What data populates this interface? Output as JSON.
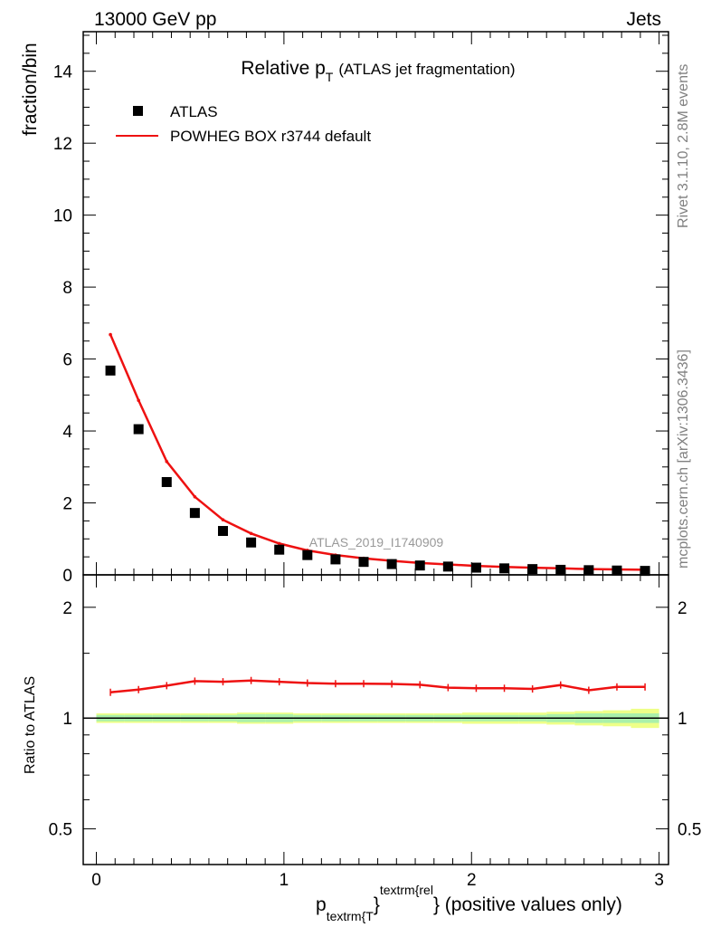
{
  "header": {
    "left": "13000 GeV pp",
    "right": "Jets"
  },
  "side_labels": {
    "rivet": "Rivet 3.1.10,  2.8M events",
    "mcplots": "mcplots.cern.ch [arXiv:1306.3436]"
  },
  "watermark": "ATLAS_2019_I1740909",
  "chart_data": [
    {
      "type": "scatter",
      "title": {
        "main": "Relative p",
        "main_sub": "T",
        "detail": "(ATLAS jet fragmentation)"
      },
      "ylabel": "fraction/bin",
      "xlim": [
        -0.07,
        3.05
      ],
      "ylim": [
        0,
        15.1
      ],
      "yticks": [
        0,
        2,
        4,
        6,
        8,
        10,
        12,
        14
      ],
      "yticklabels": [
        "0",
        "2",
        "4",
        "6",
        "8",
        "10",
        "12",
        "14"
      ],
      "legend": {
        "position": "top-left",
        "entries": [
          {
            "label": "ATLAS",
            "marker": "square",
            "color": "#000000"
          },
          {
            "label": "POWHEG BOX r3744 default",
            "marker": "line",
            "color": "#ee1111"
          }
        ]
      },
      "x": [
        0.075,
        0.225,
        0.375,
        0.525,
        0.675,
        0.825,
        0.975,
        1.125,
        1.275,
        1.425,
        1.575,
        1.725,
        1.875,
        2.025,
        2.175,
        2.325,
        2.475,
        2.625,
        2.775,
        2.925
      ],
      "series": [
        {
          "name": "ATLAS",
          "values": [
            5.68,
            4.05,
            2.58,
            1.72,
            1.22,
            0.9,
            0.7,
            0.55,
            0.43,
            0.36,
            0.3,
            0.26,
            0.23,
            0.2,
            0.18,
            0.16,
            0.14,
            0.13,
            0.12,
            0.11
          ]
        },
        {
          "name": "POWHEG BOX r3744 default",
          "values": [
            6.68,
            4.85,
            3.15,
            2.17,
            1.53,
            1.15,
            0.87,
            0.68,
            0.55,
            0.46,
            0.39,
            0.33,
            0.29,
            0.25,
            0.22,
            0.2,
            0.18,
            0.16,
            0.15,
            0.14
          ]
        }
      ]
    },
    {
      "type": "line",
      "ylabel": "Ratio to ATLAS",
      "xlabel": {
        "p": "p",
        "sub": "textrm{T",
        "brace": "}",
        "sup": "textrm{rel",
        "rest": "} (positive values only)"
      },
      "ylog": true,
      "ylim": [
        0.4,
        2.45
      ],
      "yticks": [
        0.5,
        1,
        2
      ],
      "yticklabels": [
        "0.5",
        "1",
        "2"
      ],
      "xticks": [
        0,
        1,
        2,
        3
      ],
      "xticklabels": [
        "0",
        "1",
        "2",
        "3"
      ],
      "reference": 1,
      "band_inner_halfwidth": [
        0.02,
        0.02,
        0.02,
        0.02,
        0.02,
        0.025,
        0.025,
        0.02,
        0.02,
        0.02,
        0.02,
        0.02,
        0.02,
        0.02,
        0.02,
        0.02,
        0.025,
        0.03,
        0.03,
        0.03
      ],
      "band_outer_halfwidth": [
        0.03,
        0.03,
        0.03,
        0.03,
        0.03,
        0.035,
        0.035,
        0.03,
        0.03,
        0.03,
        0.03,
        0.03,
        0.03,
        0.035,
        0.035,
        0.035,
        0.04,
        0.045,
        0.05,
        0.06
      ],
      "series": [
        {
          "name": "POWHEG BOX r3744 default / ATLAS",
          "values": [
            1.175,
            1.195,
            1.225,
            1.26,
            1.255,
            1.265,
            1.255,
            1.245,
            1.24,
            1.24,
            1.238,
            1.232,
            1.21,
            1.205,
            1.205,
            1.2,
            1.23,
            1.19,
            1.215,
            1.215
          ]
        }
      ]
    }
  ]
}
